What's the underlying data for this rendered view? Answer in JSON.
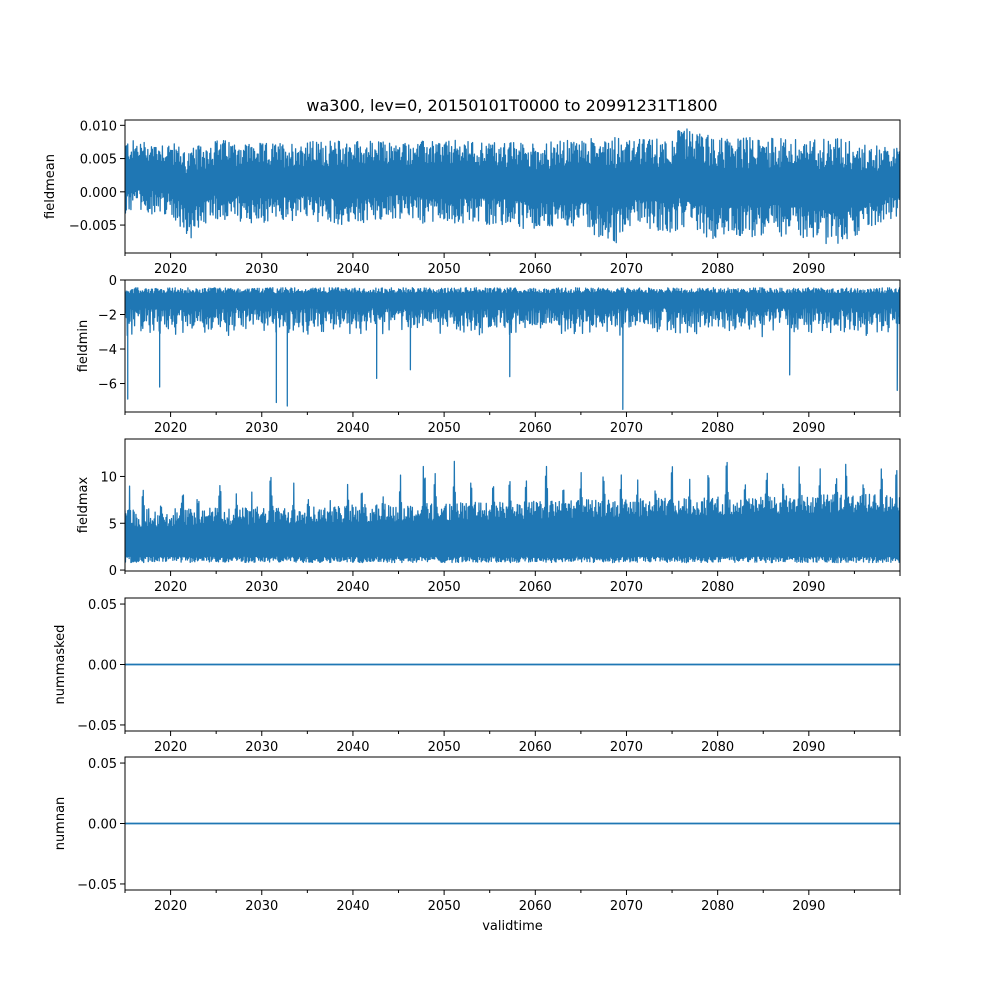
{
  "chart_data": [
    {
      "type": "line",
      "title": "wa300, lev=0, 20150101T0000 to 20991231T1800",
      "ylabel": "fieldmean",
      "xlabel": "",
      "xlim": [
        2015.0,
        2100.0
      ],
      "ylim": [
        -0.0092,
        0.0108
      ],
      "xticks": [
        2020,
        2030,
        2040,
        2050,
        2060,
        2070,
        2080,
        2090
      ],
      "yticks": [
        -0.005,
        0.0,
        0.005,
        0.01
      ],
      "ytick_labels": [
        "−0.005",
        "0.000",
        "0.005",
        "0.010"
      ],
      "color": "#1f77b4",
      "series": [
        {
          "name": "fieldmean",
          "x": [
            2015,
            2020,
            2022,
            2025,
            2030,
            2035,
            2040,
            2045,
            2050,
            2055,
            2060,
            2065,
            2069,
            2070,
            2075,
            2076,
            2080,
            2085,
            2090,
            2093,
            2095,
            2100
          ],
          "values_upper": [
            0.0078,
            0.0075,
            0.0064,
            0.0079,
            0.0073,
            0.0076,
            0.0078,
            0.0075,
            0.0078,
            0.0076,
            0.0074,
            0.0079,
            0.0088,
            0.0078,
            0.0082,
            0.0098,
            0.0082,
            0.0083,
            0.0078,
            0.0087,
            0.0074,
            0.0066
          ],
          "values_lower": [
            -0.0032,
            -0.0034,
            -0.0072,
            -0.0042,
            -0.0048,
            -0.0045,
            -0.0052,
            -0.0042,
            -0.0052,
            -0.0049,
            -0.0058,
            -0.0057,
            -0.0078,
            -0.0052,
            -0.0061,
            -0.0058,
            -0.0074,
            -0.0066,
            -0.0071,
            -0.0082,
            -0.0068,
            -0.0035
          ]
        }
      ]
    },
    {
      "type": "line",
      "title": "",
      "ylabel": "fieldmin",
      "xlabel": "",
      "xlim": [
        2015.0,
        2100.0
      ],
      "ylim": [
        -7.65,
        0.0
      ],
      "xticks": [
        2020,
        2030,
        2040,
        2050,
        2060,
        2070,
        2080,
        2090
      ],
      "yticks": [
        -6,
        -4,
        -2,
        0
      ],
      "ytick_labels": [
        "−6",
        "−4",
        "−2",
        "0"
      ],
      "color": "#1f77b4",
      "series": [
        {
          "name": "fieldmin",
          "upper_band": -0.45,
          "spikes": [
            {
              "x": 2015.3,
              "value": -6.9
            },
            {
              "x": 2018.8,
              "value": -6.2
            },
            {
              "x": 2031.6,
              "value": -7.1
            },
            {
              "x": 2032.8,
              "value": -7.3
            },
            {
              "x": 2042.6,
              "value": -5.7
            },
            {
              "x": 2046.3,
              "value": -5.2
            },
            {
              "x": 2057.2,
              "value": -5.6
            },
            {
              "x": 2069.6,
              "value": -7.5
            },
            {
              "x": 2087.9,
              "value": -5.5
            },
            {
              "x": 2099.7,
              "value": -6.4
            }
          ],
          "typical_lower": -3.3
        }
      ]
    },
    {
      "type": "line",
      "title": "",
      "ylabel": "fieldmax",
      "xlabel": "",
      "xlim": [
        2015.0,
        2100.0
      ],
      "ylim": [
        -0.1,
        14.0
      ],
      "xticks": [
        2020,
        2030,
        2040,
        2050,
        2060,
        2070,
        2080,
        2090
      ],
      "yticks": [
        0,
        5,
        10
      ],
      "ytick_labels": [
        "0",
        "5",
        "10"
      ],
      "color": "#1f77b4",
      "series": [
        {
          "name": "fieldmax",
          "lower_band": 0.8,
          "peak_x": [
            2015.5,
            2017.0,
            2019.0,
            2021.3,
            2023.0,
            2025.4,
            2027.2,
            2028.9,
            2031.0,
            2033.5,
            2035.1,
            2037.5,
            2039.4,
            2041.0,
            2043.3,
            2045.2,
            2047.8,
            2049.0,
            2051.1,
            2053.0,
            2055.4,
            2057.2,
            2059.0,
            2061.2,
            2063.1,
            2065.0,
            2067.5,
            2069.4,
            2071.2,
            2073.2,
            2075.0,
            2076.9,
            2079.0,
            2081.0,
            2083.0,
            2085.4,
            2087.2,
            2089.0,
            2091.2,
            2093.0,
            2094.1,
            2096.0,
            2098.0,
            2099.6
          ],
          "peak_values": [
            9.5,
            10.2,
            8.9,
            10.0,
            9.3,
            11.5,
            9.4,
            8.6,
            11.9,
            9.5,
            9.8,
            8.5,
            10.2,
            9.4,
            9.9,
            10.3,
            12.8,
            10.5,
            12.0,
            10.8,
            11.7,
            10.9,
            10.0,
            11.6,
            10.6,
            11.3,
            12.0,
            10.4,
            11.3,
            10.5,
            12.0,
            11.0,
            11.6,
            13.2,
            10.9,
            12.4,
            11.5,
            12.1,
            12.0,
            12.3,
            13.3,
            11.1,
            12.8,
            11.5
          ]
        }
      ]
    },
    {
      "type": "line",
      "title": "",
      "ylabel": "nummasked",
      "xlabel": "",
      "xlim": [
        2015.0,
        2100.0
      ],
      "ylim": [
        -0.055,
        0.055
      ],
      "xticks": [
        2020,
        2030,
        2040,
        2050,
        2060,
        2070,
        2080,
        2090
      ],
      "yticks": [
        -0.05,
        0.0,
        0.05
      ],
      "ytick_labels": [
        "−0.05",
        "0.00",
        "0.05"
      ],
      "color": "#1f77b4",
      "series": [
        {
          "name": "nummasked",
          "x": [
            2015,
            2100
          ],
          "values": [
            0,
            0
          ]
        }
      ]
    },
    {
      "type": "line",
      "title": "",
      "ylabel": "numnan",
      "xlabel": "validtime",
      "xlim": [
        2015.0,
        2100.0
      ],
      "ylim": [
        -0.055,
        0.055
      ],
      "xticks": [
        2020,
        2030,
        2040,
        2050,
        2060,
        2070,
        2080,
        2090
      ],
      "yticks": [
        -0.05,
        0.0,
        0.05
      ],
      "ytick_labels": [
        "−0.05",
        "0.00",
        "0.05"
      ],
      "color": "#1f77b4",
      "series": [
        {
          "name": "numnan",
          "x": [
            2015,
            2100
          ],
          "values": [
            0,
            0
          ]
        }
      ]
    }
  ]
}
